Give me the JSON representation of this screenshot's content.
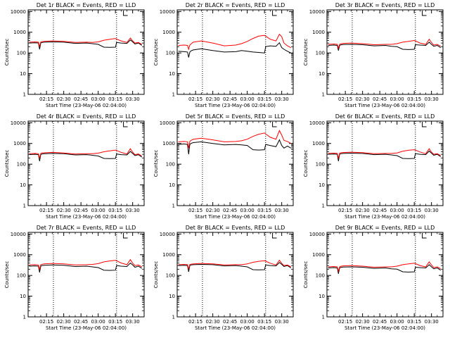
{
  "figure_title": "",
  "common": {
    "x_tick_labels": [
      "02:15",
      "02:30",
      "02:45",
      "03:00",
      "03:15",
      "03:30"
    ],
    "x_tick_minutes": [
      15,
      30,
      45,
      60,
      75,
      90
    ],
    "xlim_minutes": [
      -1,
      100
    ],
    "vlines_minutes": [
      21,
      76
    ],
    "y_tick_labels": [
      "1",
      "10",
      "100",
      "1000",
      "10000"
    ],
    "y_tick_values": [
      1,
      10,
      100,
      1000,
      10000
    ],
    "ylim": [
      1,
      12000
    ],
    "ylabel": "Counts/sec",
    "xlabel": "Start Time (23-May-06 02:04:00)",
    "series_colors": {
      "events": "#000000",
      "lld": "#ff0000"
    }
  },
  "chart_data": [
    {
      "type": "line",
      "title": "Det 1r BLACK = Events, RED = LLD",
      "series": [
        {
          "name": "Events",
          "x": [
            0,
            5,
            8,
            9,
            10,
            11,
            13,
            20,
            30,
            40,
            50,
            55,
            60,
            65,
            70,
            75,
            76,
            80,
            85,
            88,
            90,
            92,
            95,
            98
          ],
          "y": [
            300,
            310,
            300,
            150,
            300,
            320,
            330,
            340,
            330,
            290,
            300,
            280,
            260,
            190,
            185,
            190,
            320,
            300,
            290,
            420,
            340,
            270,
            300,
            230
          ]
        },
        {
          "name": "LLD",
          "x": [
            0,
            5,
            8,
            9,
            10,
            11,
            13,
            20,
            30,
            40,
            50,
            55,
            60,
            65,
            70,
            75,
            76,
            80,
            85,
            88,
            90,
            92,
            95,
            98
          ],
          "y": [
            330,
            340,
            330,
            200,
            340,
            350,
            360,
            380,
            360,
            320,
            330,
            320,
            340,
            410,
            450,
            500,
            470,
            380,
            320,
            520,
            380,
            300,
            320,
            260
          ]
        }
      ]
    },
    {
      "type": "line",
      "title": "Det 2r BLACK = Events, RED = LLD",
      "series": [
        {
          "name": "Events",
          "x": [
            0,
            5,
            8,
            9,
            10,
            11,
            13,
            20,
            30,
            40,
            50,
            55,
            60,
            65,
            70,
            75,
            76,
            80,
            85,
            88,
            90,
            92,
            95,
            98
          ],
          "y": [
            120,
            115,
            110,
            60,
            110,
            125,
            140,
            160,
            130,
            110,
            115,
            130,
            120,
            110,
            105,
            100,
            200,
            220,
            210,
            310,
            180,
            150,
            120,
            100
          ]
        },
        {
          "name": "LLD",
          "x": [
            0,
            5,
            8,
            9,
            10,
            11,
            13,
            20,
            30,
            40,
            50,
            55,
            60,
            65,
            70,
            75,
            76,
            80,
            85,
            88,
            90,
            92,
            95,
            98
          ],
          "y": [
            230,
            240,
            230,
            150,
            240,
            270,
            330,
            380,
            300,
            220,
            240,
            280,
            360,
            500,
            650,
            700,
            650,
            460,
            380,
            800,
            600,
            300,
            220,
            180
          ]
        }
      ]
    },
    {
      "type": "line",
      "title": "Det 3r BLACK = Events, RED = LLD",
      "series": [
        {
          "name": "Events",
          "x": [
            0,
            5,
            8,
            9,
            10,
            11,
            13,
            20,
            30,
            40,
            50,
            55,
            60,
            65,
            70,
            75,
            76,
            80,
            85,
            88,
            90,
            92,
            95,
            98
          ],
          "y": [
            230,
            240,
            230,
            130,
            230,
            245,
            255,
            260,
            250,
            220,
            230,
            210,
            200,
            150,
            145,
            150,
            250,
            240,
            230,
            330,
            260,
            210,
            230,
            180
          ]
        },
        {
          "name": "LLD",
          "x": [
            0,
            5,
            8,
            9,
            10,
            11,
            13,
            20,
            30,
            40,
            50,
            55,
            60,
            65,
            70,
            75,
            76,
            80,
            85,
            88,
            90,
            92,
            95,
            98
          ],
          "y": [
            260,
            270,
            260,
            170,
            260,
            275,
            290,
            300,
            280,
            250,
            260,
            260,
            280,
            330,
            360,
            400,
            380,
            300,
            260,
            460,
            320,
            240,
            260,
            210
          ]
        }
      ]
    },
    {
      "type": "line",
      "title": "Det 4r BLACK = Events, RED = LLD",
      "series": [
        {
          "name": "Events",
          "x": [
            0,
            5,
            8,
            9,
            10,
            11,
            13,
            20,
            30,
            40,
            50,
            55,
            60,
            65,
            70,
            75,
            76,
            80,
            85,
            88,
            90,
            92,
            95,
            98
          ],
          "y": [
            290,
            300,
            290,
            140,
            290,
            310,
            320,
            330,
            320,
            280,
            290,
            270,
            250,
            190,
            185,
            190,
            310,
            290,
            280,
            410,
            330,
            260,
            290,
            220
          ]
        },
        {
          "name": "LLD",
          "x": [
            0,
            5,
            8,
            9,
            10,
            11,
            13,
            20,
            30,
            40,
            50,
            55,
            60,
            65,
            70,
            75,
            76,
            80,
            85,
            88,
            90,
            92,
            95,
            98
          ],
          "y": [
            320,
            330,
            320,
            190,
            330,
            345,
            355,
            370,
            350,
            310,
            320,
            320,
            340,
            400,
            440,
            480,
            460,
            370,
            310,
            560,
            380,
            290,
            310,
            250
          ]
        }
      ]
    },
    {
      "type": "line",
      "title": "Det 5r BLACK = Events, RED = LLD",
      "series": [
        {
          "name": "Events",
          "x": [
            0,
            5,
            8,
            9,
            10,
            11,
            13,
            20,
            30,
            40,
            50,
            55,
            60,
            65,
            70,
            75,
            76,
            80,
            85,
            88,
            90,
            92,
            95,
            98
          ],
          "y": [
            900,
            950,
            900,
            300,
            900,
            1000,
            1100,
            1200,
            1000,
            850,
            900,
            850,
            800,
            500,
            480,
            500,
            900,
            800,
            700,
            1500,
            800,
            600,
            750,
            600
          ]
        },
        {
          "name": "LLD",
          "x": [
            0,
            5,
            8,
            9,
            10,
            11,
            13,
            20,
            30,
            40,
            50,
            55,
            60,
            65,
            70,
            75,
            76,
            80,
            85,
            88,
            90,
            92,
            95,
            98
          ],
          "y": [
            1200,
            1250,
            1200,
            600,
            1250,
            1400,
            1600,
            1800,
            1500,
            1200,
            1250,
            1350,
            1600,
            2200,
            2800,
            3200,
            2900,
            2000,
            1600,
            4200,
            2500,
            1400,
            1250,
            1000
          ]
        }
      ]
    },
    {
      "type": "line",
      "title": "Det 6r BLACK = Events, RED = LLD",
      "series": [
        {
          "name": "Events",
          "x": [
            0,
            5,
            8,
            9,
            10,
            11,
            13,
            20,
            30,
            40,
            50,
            55,
            60,
            65,
            70,
            75,
            76,
            80,
            85,
            88,
            90,
            92,
            95,
            98
          ],
          "y": [
            300,
            310,
            300,
            140,
            300,
            320,
            330,
            340,
            330,
            290,
            300,
            280,
            260,
            190,
            185,
            190,
            320,
            300,
            290,
            430,
            340,
            270,
            300,
            230
          ]
        },
        {
          "name": "LLD",
          "x": [
            0,
            5,
            8,
            9,
            10,
            11,
            13,
            20,
            30,
            40,
            50,
            55,
            60,
            65,
            70,
            75,
            76,
            80,
            85,
            88,
            90,
            92,
            95,
            98
          ],
          "y": [
            330,
            340,
            330,
            190,
            340,
            355,
            365,
            380,
            360,
            320,
            330,
            330,
            350,
            420,
            470,
            500,
            480,
            390,
            320,
            560,
            380,
            300,
            320,
            260
          ]
        }
      ]
    },
    {
      "type": "line",
      "title": "Det 7r BLACK = Events, RED = LLD",
      "series": [
        {
          "name": "Events",
          "x": [
            0,
            5,
            8,
            9,
            10,
            11,
            13,
            20,
            30,
            40,
            50,
            55,
            60,
            65,
            70,
            75,
            76,
            80,
            85,
            88,
            90,
            92,
            95,
            98
          ],
          "y": [
            280,
            290,
            280,
            140,
            280,
            300,
            310,
            320,
            310,
            270,
            280,
            260,
            240,
            180,
            175,
            180,
            300,
            280,
            270,
            400,
            320,
            250,
            280,
            220
          ]
        },
        {
          "name": "LLD",
          "x": [
            0,
            5,
            8,
            9,
            10,
            11,
            13,
            20,
            30,
            40,
            50,
            55,
            60,
            65,
            70,
            75,
            76,
            80,
            85,
            88,
            90,
            92,
            95,
            98
          ],
          "y": [
            320,
            330,
            320,
            190,
            330,
            345,
            360,
            380,
            360,
            320,
            330,
            340,
            370,
            450,
            500,
            540,
            510,
            400,
            330,
            580,
            390,
            300,
            320,
            260
          ]
        }
      ]
    },
    {
      "type": "line",
      "title": "Det 8r BLACK = Events, RED = LLD",
      "series": [
        {
          "name": "Events",
          "x": [
            0,
            5,
            8,
            9,
            10,
            11,
            13,
            20,
            30,
            40,
            50,
            55,
            60,
            65,
            70,
            75,
            76,
            80,
            85,
            88,
            90,
            92,
            95,
            98
          ],
          "y": [
            300,
            310,
            300,
            150,
            300,
            320,
            330,
            340,
            330,
            290,
            300,
            280,
            260,
            190,
            185,
            190,
            320,
            300,
            290,
            420,
            340,
            270,
            300,
            230
          ]
        },
        {
          "name": "LLD",
          "x": [
            0,
            5,
            8,
            9,
            10,
            11,
            13,
            20,
            30,
            40,
            50,
            55,
            60,
            65,
            70,
            75,
            76,
            80,
            85,
            88,
            90,
            92,
            95,
            98
          ],
          "y": [
            330,
            340,
            330,
            200,
            340,
            350,
            360,
            380,
            360,
            320,
            330,
            330,
            360,
            430,
            480,
            510,
            490,
            390,
            320,
            540,
            380,
            300,
            320,
            260
          ]
        }
      ]
    },
    {
      "type": "line",
      "title": "Det 9r BLACK = Events, RED = LLD",
      "series": [
        {
          "name": "Events",
          "x": [
            0,
            5,
            8,
            9,
            10,
            11,
            13,
            20,
            30,
            40,
            50,
            55,
            60,
            65,
            70,
            75,
            76,
            80,
            85,
            88,
            90,
            92,
            95,
            98
          ],
          "y": [
            230,
            240,
            230,
            120,
            230,
            245,
            255,
            260,
            250,
            220,
            230,
            210,
            200,
            150,
            145,
            150,
            250,
            240,
            230,
            330,
            260,
            210,
            230,
            180
          ]
        },
        {
          "name": "LLD",
          "x": [
            0,
            5,
            8,
            9,
            10,
            11,
            13,
            20,
            30,
            40,
            50,
            55,
            60,
            65,
            70,
            75,
            76,
            80,
            85,
            88,
            90,
            92,
            95,
            98
          ],
          "y": [
            260,
            270,
            260,
            160,
            260,
            275,
            290,
            300,
            280,
            250,
            260,
            260,
            280,
            330,
            360,
            390,
            370,
            300,
            260,
            450,
            320,
            240,
            260,
            210
          ]
        }
      ]
    }
  ]
}
